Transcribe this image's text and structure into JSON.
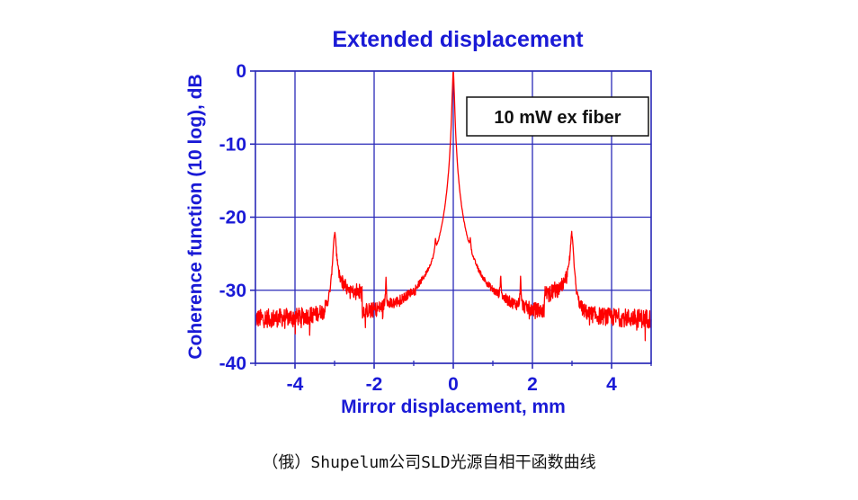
{
  "figure": {
    "title": "Extended displacement",
    "caption": "（俄）Shupelum公司SLD光源自相干函数曲线"
  },
  "colors": {
    "axis": "#2a2ab8",
    "grid": "#2a2ab8",
    "text": "#1a1ad6",
    "trace": "#ff0000",
    "legend_border": "#111111"
  },
  "chart_data": {
    "type": "line",
    "title": "Extended displacement",
    "xlabel": "Mirror displacement, mm",
    "ylabel": "Coherence function (10 log), dB",
    "xlim": [
      -5,
      5
    ],
    "ylim": [
      -40,
      0
    ],
    "x_ticks": [
      -4,
      -2,
      0,
      2,
      4
    ],
    "x_tick_labels": [
      "-4",
      "-2",
      "0",
      "2",
      "4"
    ],
    "y_ticks": [
      0,
      -10,
      -20,
      -30,
      -40
    ],
    "y_tick_labels": [
      "0",
      "-10",
      "-20",
      "-30",
      "-40"
    ],
    "grid": true,
    "legend": {
      "entries": [
        "10 mW ex fiber"
      ],
      "position": "upper right"
    },
    "series": [
      {
        "name": "10 mW ex fiber",
        "baseline_db": -34.2,
        "noise_db": 1.4,
        "peaks": [
          {
            "x": 0.0,
            "y": 0.0,
            "width": 0.025
          },
          {
            "x": -3.0,
            "y": -22.7,
            "width": 0.04
          },
          {
            "x": 3.0,
            "y": -22.9,
            "width": 0.04
          },
          {
            "x": -0.45,
            "y": -27.8,
            "width": 0.015
          },
          {
            "x": 0.43,
            "y": -28.7,
            "width": 0.015
          },
          {
            "x": -1.7,
            "y": -30.3,
            "width": 0.012
          },
          {
            "x": 1.2,
            "y": -31.3,
            "width": 0.012
          },
          {
            "x": 1.7,
            "y": -30.7,
            "width": 0.012
          }
        ],
        "x": [
          -5,
          -4.5,
          -4,
          -3.5,
          -3.1,
          -3.0,
          -2.9,
          -2.5,
          -2,
          -1.7,
          -1.5,
          -1,
          -0.45,
          -0.2,
          0,
          0.2,
          0.43,
          0.8,
          1.2,
          1.5,
          1.7,
          2,
          2.5,
          2.9,
          3.0,
          3.1,
          3.5,
          4,
          4.5,
          5
        ],
        "y": [
          -34.5,
          -34.0,
          -34.3,
          -34.2,
          -33.5,
          -22.7,
          -31.0,
          -33.5,
          -34.3,
          -30.3,
          -34.2,
          -34.4,
          -27.8,
          -33.0,
          0.0,
          -32.5,
          -28.7,
          -34.0,
          -31.3,
          -34.0,
          -30.7,
          -34.2,
          -33.2,
          -30.5,
          -22.9,
          -33.8,
          -34.2,
          -34.0,
          -34.5,
          -34.2
        ]
      }
    ]
  }
}
